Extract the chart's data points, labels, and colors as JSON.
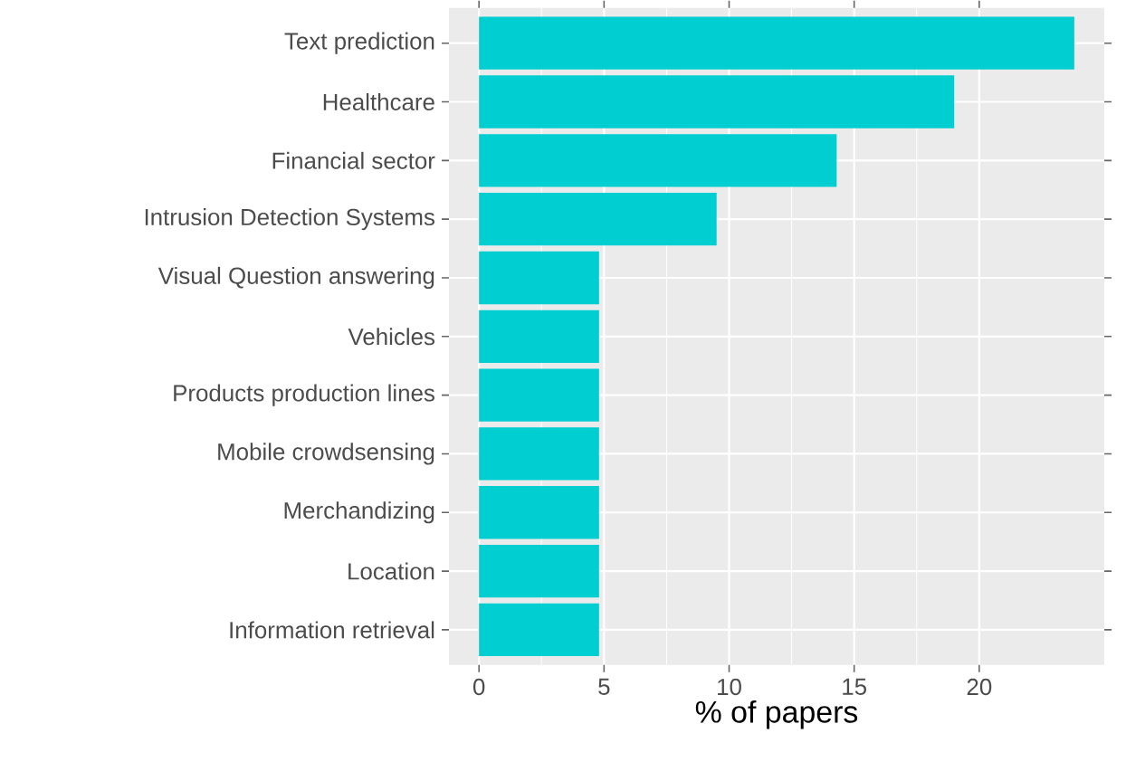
{
  "chart_data": {
    "type": "bar",
    "orientation": "horizontal",
    "xlabel": "% of papers",
    "categories": [
      "Text prediction",
      "Healthcare",
      "Financial sector",
      "Intrusion Detection Systems",
      "Visual Question answering",
      "Vehicles",
      "Products production lines",
      "Mobile crowdsensing",
      "Merchandizing",
      "Location",
      "Information retrieval"
    ],
    "values": [
      23.8,
      19.0,
      14.3,
      9.5,
      4.8,
      4.8,
      4.8,
      4.8,
      4.8,
      4.8,
      4.8
    ],
    "color": "#00ced1",
    "xlim": [
      -1.2,
      25
    ],
    "xticks": [
      0,
      5,
      10,
      15,
      20
    ],
    "grid": true
  }
}
